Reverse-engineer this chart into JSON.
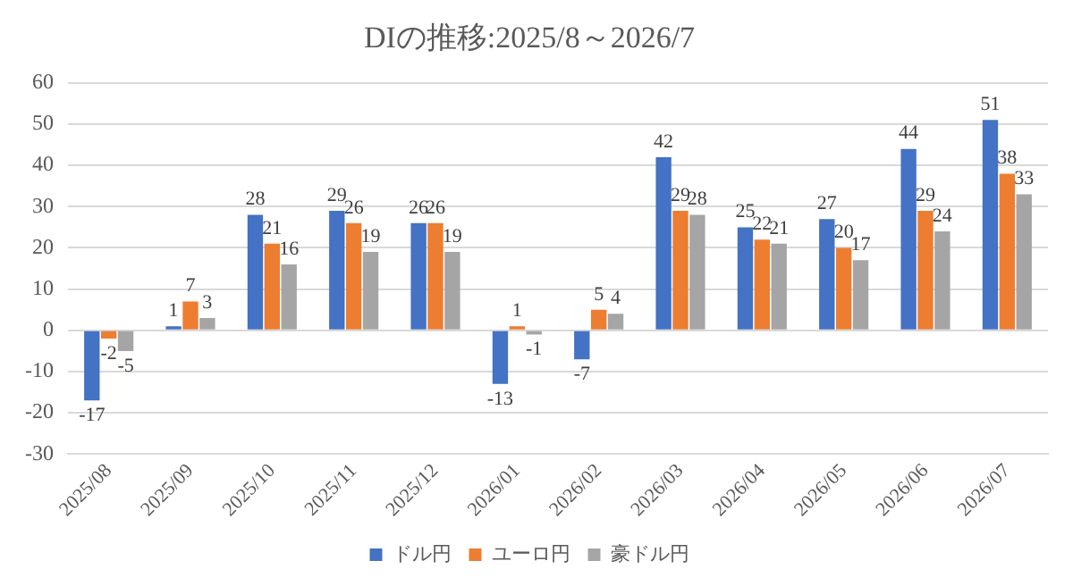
{
  "chart_data": {
    "type": "bar",
    "title": "DIの推移:2025/8～2026/7",
    "categories": [
      "2025/08",
      "2025/09",
      "2025/10",
      "2025/11",
      "2025/12",
      "2026/01",
      "2026/02",
      "2026/03",
      "2026/04",
      "2026/05",
      "2026/06",
      "2026/07"
    ],
    "series": [
      {
        "name": "ドル円",
        "color": "#4472c4",
        "values": [
          -17,
          1,
          28,
          29,
          26,
          -13,
          -7,
          42,
          25,
          27,
          44,
          51
        ]
      },
      {
        "name": "ユーロ円",
        "color": "#ed7d31",
        "values": [
          -2,
          7,
          21,
          26,
          26,
          1,
          5,
          29,
          22,
          20,
          29,
          38
        ]
      },
      {
        "name": "豪ドル円",
        "color": "#a5a5a5",
        "values": [
          -5,
          3,
          16,
          19,
          19,
          -1,
          4,
          28,
          21,
          17,
          24,
          33
        ]
      }
    ],
    "ylim": [
      -30,
      60
    ],
    "yticks": [
      -30,
      -20,
      -10,
      0,
      10,
      20,
      30,
      40,
      50,
      60
    ],
    "grid": "y",
    "legend": "bottom",
    "data_labels": true
  }
}
